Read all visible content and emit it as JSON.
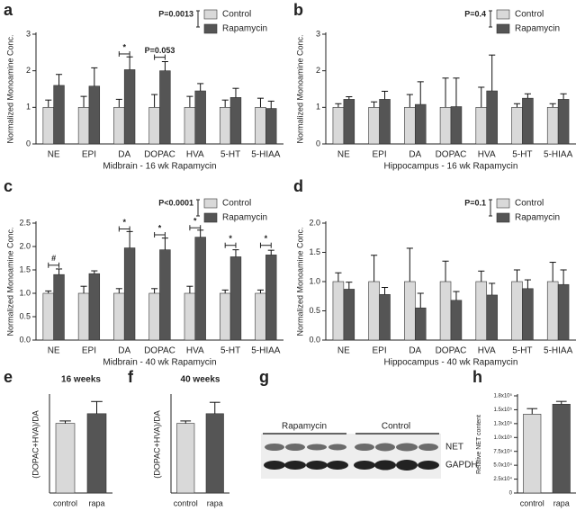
{
  "chart_data": [
    {
      "type": "bar",
      "panel": "a",
      "xlabel": "Midbrain - 16 wk Rapamycin",
      "ylabel": "Normalized Monoamine Conc.",
      "categories": [
        "NE",
        "EPI",
        "DA",
        "DOPAC",
        "HVA",
        "5-HT",
        "5-HIAA"
      ],
      "series": [
        {
          "name": "Control",
          "color": "#d9d9d9",
          "values": [
            1,
            1,
            1,
            1,
            1,
            1,
            1
          ],
          "errors": [
            0.2,
            0.3,
            0.22,
            0.35,
            0.3,
            0.2,
            0.25
          ]
        },
        {
          "name": "Rapamycin",
          "color": "#555555",
          "values": [
            1.6,
            1.58,
            2.03,
            2.0,
            1.45,
            1.27,
            0.97
          ],
          "errors": [
            0.3,
            0.5,
            0.35,
            0.25,
            0.2,
            0.25,
            0.2
          ]
        }
      ],
      "ylim": [
        0,
        3
      ],
      "yticks": [
        0,
        1,
        2,
        3
      ],
      "annotations": [
        "P=0.0013",
        "*",
        "P=0.053"
      ]
    },
    {
      "type": "bar",
      "panel": "b",
      "xlabel": "Hippocampus - 16 wk Rapamycin",
      "ylabel": "Normalized Monoamine Conc.",
      "categories": [
        "NE",
        "EPI",
        "DA",
        "DOPAC",
        "HVA",
        "5-HT",
        "5-HIAA"
      ],
      "series": [
        {
          "name": "Control",
          "color": "#d9d9d9",
          "values": [
            1,
            1,
            1,
            1,
            1,
            1,
            1
          ],
          "errors": [
            0.1,
            0.15,
            0.35,
            0.8,
            0.55,
            0.1,
            0.1
          ]
        },
        {
          "name": "Rapamycin",
          "color": "#555555",
          "values": [
            1.22,
            1.22,
            1.08,
            1.02,
            1.45,
            1.25,
            1.22
          ],
          "errors": [
            0.07,
            0.22,
            0.62,
            0.78,
            0.98,
            0.12,
            0.15
          ]
        }
      ],
      "ylim": [
        0,
        3
      ],
      "yticks": [
        0,
        1,
        2,
        3
      ],
      "annotations": [
        "P=0.4"
      ]
    },
    {
      "type": "bar",
      "panel": "c",
      "xlabel": "Midbrain - 40 wk Rapamycin",
      "ylabel": "Normalized Monoamine Conc.",
      "categories": [
        "NE",
        "EPI",
        "DA",
        "DOPAC",
        "HVA",
        "5-HT",
        "5-HIAA"
      ],
      "series": [
        {
          "name": "Control",
          "color": "#d9d9d9",
          "values": [
            1,
            1,
            1,
            1,
            1,
            1,
            1
          ],
          "errors": [
            0.05,
            0.15,
            0.1,
            0.1,
            0.15,
            0.07,
            0.07
          ]
        },
        {
          "name": "Rapamycin",
          "color": "#555555",
          "values": [
            1.4,
            1.42,
            1.97,
            1.93,
            2.2,
            1.78,
            1.82
          ],
          "errors": [
            0.12,
            0.06,
            0.35,
            0.25,
            0.15,
            0.15,
            0.1
          ]
        }
      ],
      "ylim": [
        0,
        2.5
      ],
      "yticks": [
        {
          "value": 0,
          "label": "0.0"
        },
        0.5,
        {
          "value": 1,
          "label": "1.0"
        },
        1.5,
        {
          "value": 2,
          "label": "2.0"
        },
        2.5
      ],
      "annotations": [
        "P<0.0001",
        "#",
        "*",
        "*",
        "*",
        "*",
        "*"
      ]
    },
    {
      "type": "bar",
      "panel": "d",
      "xlabel": "Hippocampus - 40 wk Rapamycin",
      "ylabel": "Normalized Monoamine Conc.",
      "categories": [
        "NE",
        "EPI",
        "DA",
        "DOPAC",
        "HVA",
        "5-HT",
        "5-HIAA"
      ],
      "series": [
        {
          "name": "Control",
          "color": "#d9d9d9",
          "values": [
            1,
            1,
            1,
            1,
            1,
            1,
            1
          ],
          "errors": [
            0.15,
            0.45,
            0.57,
            0.35,
            0.18,
            0.2,
            0.33
          ]
        },
        {
          "name": "Rapamycin",
          "color": "#555555",
          "values": [
            0.87,
            0.78,
            0.55,
            0.68,
            0.77,
            0.88,
            0.95
          ],
          "errors": [
            0.12,
            0.12,
            0.25,
            0.15,
            0.2,
            0.15,
            0.25
          ]
        }
      ],
      "ylim": [
        0,
        2
      ],
      "yticks": [
        {
          "value": 0,
          "label": "0.0"
        },
        0.5,
        {
          "value": 1,
          "label": "1.0"
        },
        1.5,
        {
          "value": 2,
          "label": "2.0"
        }
      ],
      "annotations": [
        "P=0.1"
      ]
    },
    {
      "type": "bar",
      "panel": "e",
      "title": "16 weeks",
      "ylabel": "(DOPAC+HVA)/DA",
      "categories": [
        "control",
        "rapa"
      ],
      "colors": [
        "#d9d9d9",
        "#555555"
      ],
      "values": [
        0.86,
        0.98
      ],
      "errors": [
        0.03,
        0.15
      ],
      "ylim": [
        0,
        1.2
      ]
    },
    {
      "type": "bar",
      "panel": "f",
      "title": "40 weeks",
      "ylabel": "(DOPAC+HVA)/DA",
      "categories": [
        "control",
        "rapa"
      ],
      "colors": [
        "#d9d9d9",
        "#555555"
      ],
      "values": [
        0.86,
        0.98
      ],
      "errors": [
        0.03,
        0.14
      ],
      "ylim": [
        0,
        1.2
      ]
    },
    {
      "type": "bar",
      "panel": "h",
      "ylabel": "Relative NET content",
      "categories": [
        "control",
        "rapa"
      ],
      "colors": [
        "#d9d9d9",
        "#555555"
      ],
      "values": [
        142000,
        160000
      ],
      "errors": [
        10000,
        5000
      ],
      "ylim": [
        0,
        175000
      ],
      "yticks": [
        0,
        {
          "value": 25000,
          "label": "2.5x10⁴"
        },
        {
          "value": 50000,
          "label": "5.0x10⁴"
        },
        {
          "value": 75000,
          "label": "7.5x10⁴"
        },
        {
          "value": 100000,
          "label": "1.0x10⁵"
        },
        {
          "value": 125000,
          "label": "1.3x10⁵"
        },
        {
          "value": 150000,
          "label": "1.5x10⁵"
        },
        {
          "value": 175000,
          "label": "1.8x10⁵"
        }
      ]
    }
  ],
  "blot": {
    "panel": "g",
    "groups": [
      "Rapamycin",
      "Control"
    ],
    "bands": [
      "NET",
      "GAPDH"
    ]
  }
}
